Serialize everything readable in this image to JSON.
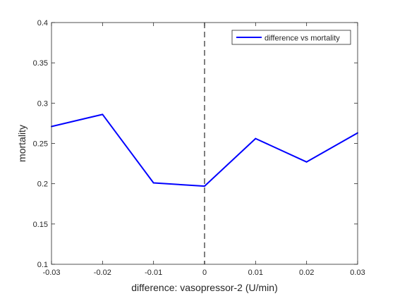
{
  "chart_data": {
    "type": "line",
    "title": "",
    "xlabel": "difference: vasopressor-2 (U/min)",
    "ylabel": "mortality",
    "xlim": [
      -0.03,
      0.03
    ],
    "ylim": [
      0.1,
      0.4
    ],
    "xticks": [
      -0.03,
      -0.02,
      -0.01,
      0,
      0.01,
      0.02,
      0.03
    ],
    "xtick_labels": [
      "-0.03",
      "-0.02",
      "-0.01",
      "0",
      "0.01",
      "0.02",
      "0.03"
    ],
    "yticks": [
      0.1,
      0.15,
      0.2,
      0.25,
      0.3,
      0.35,
      0.4
    ],
    "ytick_labels": [
      "0.1",
      "0.15",
      "0.2",
      "0.25",
      "0.3",
      "0.35",
      "0.4"
    ],
    "grid": false,
    "legend_position": "top-right",
    "series": [
      {
        "name": "difference vs mortality",
        "color": "#0000ff",
        "x": [
          -0.03,
          -0.02,
          -0.01,
          0,
          0.01,
          0.02,
          0.03
        ],
        "y": [
          0.271,
          0.286,
          0.201,
          0.197,
          0.256,
          0.227,
          0.263
        ]
      }
    ],
    "reference_line": {
      "x": 0,
      "style": "dashed",
      "color": "#555555"
    }
  }
}
